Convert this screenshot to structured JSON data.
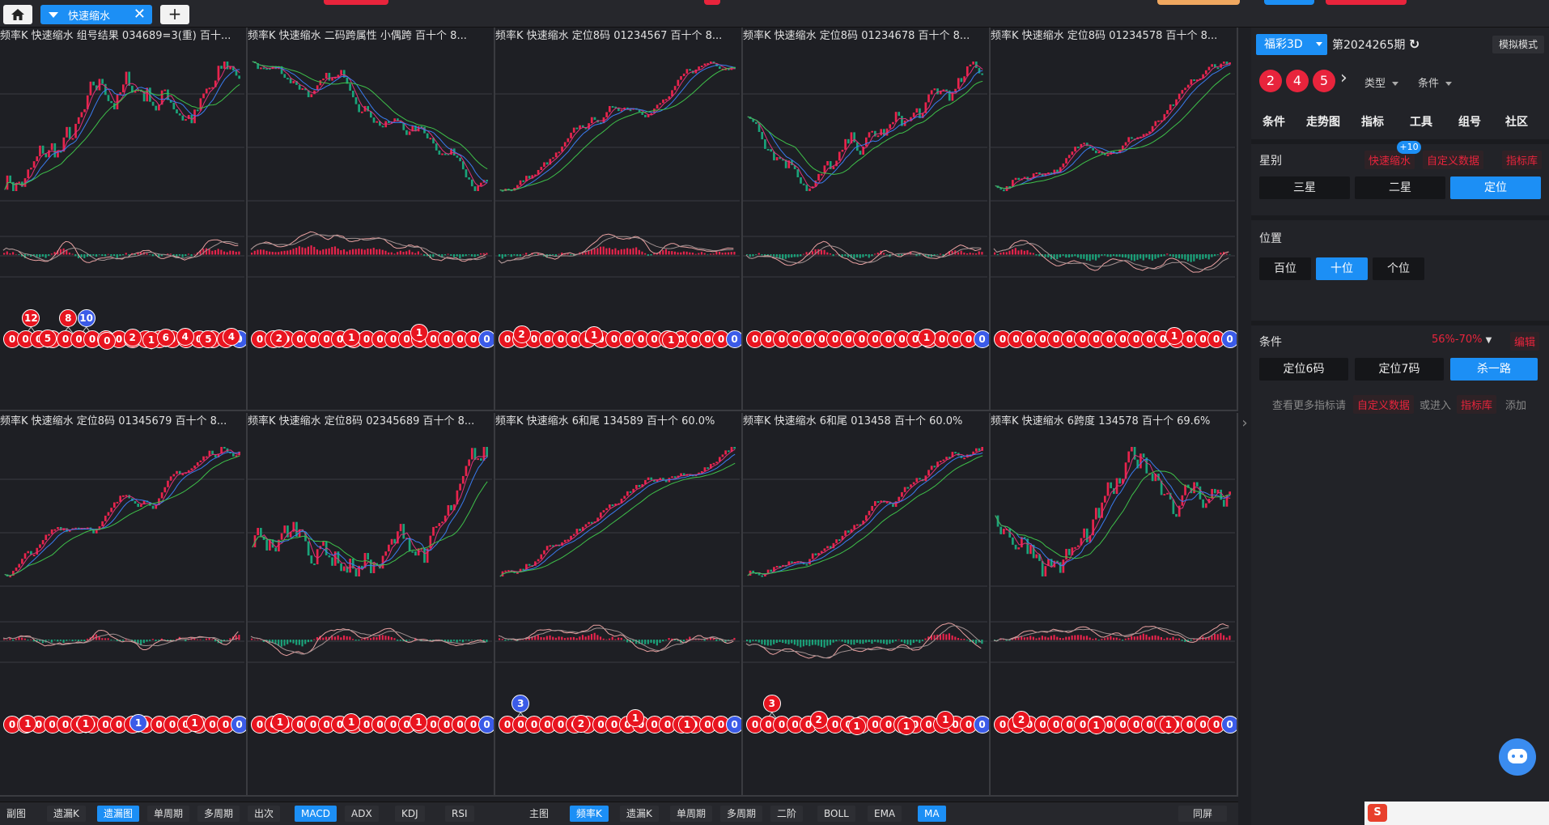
{
  "tabs": {
    "active_label": "快速缩水",
    "close_glyph": "✕",
    "add_glyph": "+"
  },
  "panels": [
    {
      "title": "频率K  快速缩水  组号结果 034689=3(重)  百十...",
      "balls": [
        {
          "t": "12",
          "c": "red"
        },
        {
          "t": "5",
          "c": "red"
        },
        {
          "t": "8",
          "c": "red"
        },
        {
          "t": "10",
          "c": "blue"
        },
        {
          "t": "0",
          "c": "red"
        },
        {
          "t": "2",
          "c": "red"
        },
        {
          "t": "1",
          "c": "red"
        },
        {
          "t": "6",
          "c": "red"
        },
        {
          "t": "4",
          "c": "red"
        },
        {
          "t": "5",
          "c": "red"
        },
        {
          "t": "4",
          "c": "red"
        }
      ]
    },
    {
      "title": "频率K  快速缩水  二码跨属性 小偶跨  百十个  8...",
      "balls": [
        {
          "t": "2",
          "c": "red"
        },
        {
          "t": "1",
          "c": "red"
        },
        {
          "t": "1",
          "c": "red"
        }
      ]
    },
    {
      "title": "频率K  快速缩水  定位8码 01234567  百十个  8...",
      "balls": [
        {
          "t": "2",
          "c": "red"
        },
        {
          "t": "1",
          "c": "red"
        },
        {
          "t": "1",
          "c": "red"
        }
      ]
    },
    {
      "title": "频率K  快速缩水  定位8码 01234678  百十个  8...",
      "balls": [
        {
          "t": "1",
          "c": "red"
        }
      ]
    },
    {
      "title": "频率K  快速缩水  定位8码 01234578  百十个  8...",
      "balls": [
        {
          "t": "1",
          "c": "red"
        }
      ]
    },
    {
      "title": "频率K  快速缩水  定位8码 01345679  百十个  8...",
      "balls": [
        {
          "t": "1",
          "c": "red"
        },
        {
          "t": "1",
          "c": "red"
        },
        {
          "t": "1",
          "c": "blue"
        },
        {
          "t": "1",
          "c": "red"
        }
      ]
    },
    {
      "title": "频率K  快速缩水  定位8码 02345689  百十个  8...",
      "balls": [
        {
          "t": "1",
          "c": "red"
        },
        {
          "t": "1",
          "c": "red"
        },
        {
          "t": "1",
          "c": "red"
        }
      ]
    },
    {
      "title": "频率K  快速缩水  6和尾 134589  百十个  60.0%",
      "balls": [
        {
          "t": "3",
          "c": "blue"
        },
        {
          "t": "2",
          "c": "red"
        },
        {
          "t": "1",
          "c": "red"
        },
        {
          "t": "1",
          "c": "red"
        }
      ]
    },
    {
      "title": "频率K  快速缩水  6和尾 013458  百十个  60.0%",
      "balls": [
        {
          "t": "3",
          "c": "red"
        },
        {
          "t": "2",
          "c": "red"
        },
        {
          "t": "1",
          "c": "red"
        },
        {
          "t": "1",
          "c": "red"
        },
        {
          "t": "1",
          "c": "red"
        }
      ]
    },
    {
      "title": "频率K  快速缩水  6跨度 134578  百十个  69.6%",
      "balls": [
        {
          "t": "2",
          "c": "red"
        },
        {
          "t": "1",
          "c": "red"
        },
        {
          "t": "1",
          "c": "red"
        }
      ]
    }
  ],
  "zero_ball": "0",
  "bottom": {
    "left": [
      {
        "label": "副图",
        "on": false,
        "plain": true
      },
      {
        "label": "遗漏K",
        "on": false
      },
      {
        "label": "遗漏图",
        "on": true
      },
      {
        "label": "单周期",
        "on": false
      },
      {
        "label": "多周期",
        "on": false
      },
      {
        "label": "出次",
        "on": false
      },
      {
        "label": "MACD",
        "on": true
      },
      {
        "label": "ADX",
        "on": false
      },
      {
        "label": "KDJ",
        "on": false
      },
      {
        "label": "RSI",
        "on": false
      }
    ],
    "right": [
      {
        "label": "主图",
        "on": false,
        "plain": true
      },
      {
        "label": "频率K",
        "on": true
      },
      {
        "label": "遗漏K",
        "on": false
      },
      {
        "label": "单周期",
        "on": false
      },
      {
        "label": "多周期",
        "on": false
      },
      {
        "label": "二阶",
        "on": false
      },
      {
        "label": "BOLL",
        "on": false
      },
      {
        "label": "EMA",
        "on": false
      },
      {
        "label": "MA",
        "on": true
      }
    ],
    "fullscreen_label": "同屏"
  },
  "sidebar": {
    "lottery": "福彩3D",
    "period": "第2024265期",
    "refresh_glyph": "↻",
    "mock_mode": "模拟模式",
    "numbers": [
      "2",
      "4",
      "5"
    ],
    "next_glyph": "›",
    "type_label": "类型",
    "cond_label": "条件",
    "nav": [
      "条件",
      "走势图",
      "指标",
      "工具",
      "组号",
      "社区"
    ],
    "star": {
      "label": "星别",
      "links": [
        "快速缩水",
        "自定义数据",
        "指标库"
      ],
      "badge": "+10",
      "options": [
        "三星",
        "二星",
        "定位"
      ],
      "active": 2
    },
    "position": {
      "label": "位置",
      "options": [
        "百位",
        "十位",
        "个位"
      ],
      "active": 1
    },
    "condition": {
      "label": "条件",
      "range": "56%-70%",
      "edit": "编辑",
      "options": [
        "定位6码",
        "定位7码",
        "杀一路"
      ],
      "active": 2
    },
    "hint": {
      "p1": "查看更多指标请",
      "link1": "自定义数据",
      "p2": "或进入",
      "link2": "指标库",
      "p3": "添加"
    }
  },
  "colors": {
    "up": "#e8244c",
    "down": "#1aa37a",
    "ma_fast": "#e0307a",
    "ma_mid": "#3a7cf0",
    "ma_slow": "#3ec04a",
    "accent": "#1c8ff5"
  }
}
